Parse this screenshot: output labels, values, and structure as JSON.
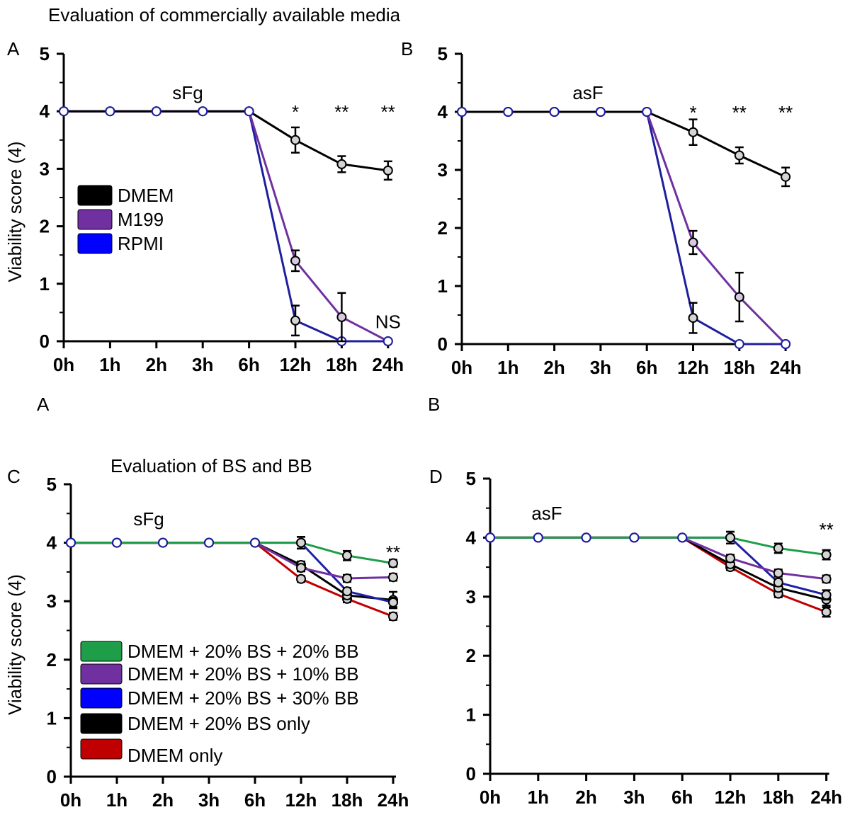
{
  "page_title": "Evaluation of commercially available media",
  "extra_labels": {
    "a_mid": "A",
    "b_mid": "B"
  },
  "colors": {
    "DMEM": "#000000",
    "M199": "#7030a0",
    "RPMI": "#1f1f9e",
    "green": "#1e9e48",
    "purple": "#7030a0",
    "blue": "#1f1fa8",
    "black": "#000000",
    "red": "#c00000"
  },
  "chart_data": [
    {
      "panel": "A",
      "type": "line",
      "subtitle": "sFg",
      "ylabel": "Viability score (4)",
      "xlabel": "",
      "categories": [
        "0h",
        "1h",
        "2h",
        "3h",
        "6h",
        "12h",
        "18h",
        "24h"
      ],
      "ylim": [
        0,
        5
      ],
      "yticks": [
        0,
        1,
        2,
        3,
        4,
        5
      ],
      "legend_position": "middle-left",
      "series": [
        {
          "name": "DMEM",
          "label": "DMEM",
          "color": "#000000",
          "values": [
            4,
            4,
            4,
            4,
            4,
            3.5,
            3.08,
            2.97
          ],
          "errors": [
            0,
            0,
            0,
            0,
            0,
            0.22,
            0.14,
            0.16
          ]
        },
        {
          "name": "M199",
          "label": "M199",
          "color": "#7030a0",
          "values": [
            4,
            4,
            4,
            4,
            4,
            1.4,
            0.42,
            0
          ],
          "errors": [
            0,
            0,
            0,
            0,
            0,
            0.18,
            0.42,
            0
          ]
        },
        {
          "name": "RPMI",
          "label": "RPMI",
          "color": "#1f1f9e",
          "values": [
            4,
            4,
            4,
            4,
            4,
            0.36,
            0,
            0
          ],
          "errors": [
            0,
            0,
            0,
            0,
            0,
            0.26,
            0,
            0
          ]
        }
      ],
      "annotations": [
        {
          "text": "*",
          "x": "12h",
          "y": 4.0
        },
        {
          "text": "**",
          "x": "18h",
          "y": 4.0
        },
        {
          "text": "**",
          "x": "24h",
          "y": 4.0
        },
        {
          "text": "NS",
          "x": "24h",
          "y": 0.35
        }
      ]
    },
    {
      "panel": "B",
      "type": "line",
      "subtitle": "asF",
      "ylabel": "",
      "xlabel": "",
      "categories": [
        "0h",
        "1h",
        "2h",
        "3h",
        "6h",
        "12h",
        "18h",
        "24h"
      ],
      "ylim": [
        0,
        5
      ],
      "yticks": [
        0,
        1,
        2,
        3,
        4,
        5
      ],
      "series": [
        {
          "name": "DMEM",
          "color": "#000000",
          "values": [
            4,
            4,
            4,
            4,
            4,
            3.65,
            3.25,
            2.88
          ],
          "errors": [
            0,
            0,
            0,
            0,
            0,
            0.22,
            0.14,
            0.16
          ]
        },
        {
          "name": "M199",
          "color": "#7030a0",
          "values": [
            4,
            4,
            4,
            4,
            4,
            1.75,
            0.81,
            0
          ],
          "errors": [
            0,
            0,
            0,
            0,
            0,
            0.2,
            0.42,
            0
          ]
        },
        {
          "name": "RPMI",
          "color": "#1f1f9e",
          "values": [
            4,
            4,
            4,
            4,
            4,
            0.45,
            0,
            0
          ],
          "errors": [
            0,
            0,
            0,
            0,
            0,
            0.26,
            0,
            0
          ]
        }
      ],
      "annotations": [
        {
          "text": "*",
          "x": "12h",
          "y": 4.0
        },
        {
          "text": "**",
          "x": "18h",
          "y": 4.0
        },
        {
          "text": "**",
          "x": "24h",
          "y": 4.0
        }
      ]
    },
    {
      "panel": "C",
      "type": "line",
      "title": "Evaluation of BS and BB",
      "subtitle": "sFg",
      "ylabel": "Viability score (4)",
      "xlabel": "",
      "categories": [
        "0h",
        "1h",
        "2h",
        "3h",
        "6h",
        "12h",
        "18h",
        "24h"
      ],
      "ylim": [
        0,
        5
      ],
      "yticks": [
        0,
        1,
        2,
        3,
        4,
        5
      ],
      "legend_position": "bottom-left",
      "series": [
        {
          "name": "DMEM + 20% BS + 20% BB",
          "label": "DMEM + 20% BS + 20% BB",
          "color": "#1e9e48",
          "values": [
            4,
            4,
            4,
            4,
            4,
            4.0,
            3.78,
            3.65
          ],
          "errors": [
            0,
            0,
            0,
            0,
            0,
            0.1,
            0.08,
            0.06
          ]
        },
        {
          "name": "DMEM + 20% BS + 10% BB",
          "label": "DMEM + 20% BS + 10% BB",
          "color": "#7030a0",
          "values": [
            4,
            4,
            4,
            4,
            4,
            3.57,
            3.39,
            3.41
          ],
          "errors": [
            0,
            0,
            0,
            0,
            0,
            0.06,
            0.06,
            0.06
          ]
        },
        {
          "name": "DMEM + 20% BS + 30% BB",
          "label": "DMEM + 20% BS + 30% BB",
          "color": "#1f1fa8",
          "values": [
            4,
            4,
            4,
            4,
            4,
            4.0,
            3.17,
            2.98
          ],
          "errors": [
            0,
            0,
            0,
            0,
            0,
            0.1,
            0.06,
            0.08
          ]
        },
        {
          "name": "DMEM + 20% BS only",
          "label": "DMEM + 20% BS only",
          "color": "#000000",
          "values": [
            4,
            4,
            4,
            4,
            4,
            3.62,
            3.1,
            3.02
          ],
          "errors": [
            0,
            0,
            0,
            0,
            0,
            0.06,
            0.06,
            0.14
          ]
        },
        {
          "name": "DMEM only",
          "label": "DMEM only",
          "color": "#c00000",
          "values": [
            4,
            4,
            4,
            4,
            4,
            3.38,
            3.04,
            2.74
          ],
          "errors": [
            0,
            0,
            0,
            0,
            0,
            0.05,
            0.06,
            0.06
          ]
        }
      ],
      "annotations": [
        {
          "text": "**",
          "x": "24h",
          "y": 3.85
        }
      ]
    },
    {
      "panel": "D",
      "type": "line",
      "subtitle": "asF",
      "ylabel": "",
      "xlabel": "",
      "categories": [
        "0h",
        "1h",
        "2h",
        "3h",
        "6h",
        "12h",
        "18h",
        "24h"
      ],
      "ylim": [
        0,
        5
      ],
      "yticks": [
        0,
        1,
        2,
        3,
        4,
        5
      ],
      "series": [
        {
          "name": "DMEM + 20% BS + 20% BB",
          "color": "#1e9e48",
          "values": [
            4,
            4,
            4,
            4,
            4,
            4.0,
            3.82,
            3.71
          ],
          "errors": [
            0,
            0,
            0,
            0,
            0,
            0.1,
            0.08,
            0.08
          ]
        },
        {
          "name": "DMEM + 20% BS + 10% BB",
          "color": "#7030a0",
          "values": [
            4,
            4,
            4,
            4,
            4,
            3.65,
            3.4,
            3.3
          ],
          "errors": [
            0,
            0,
            0,
            0,
            0,
            0.06,
            0.06,
            0.06
          ]
        },
        {
          "name": "DMEM + 20% BS + 30% BB",
          "color": "#1f1fa8",
          "values": [
            4,
            4,
            4,
            4,
            4,
            4.0,
            3.24,
            3.03
          ],
          "errors": [
            0,
            0,
            0,
            0,
            0,
            0.1,
            0.06,
            0.08
          ]
        },
        {
          "name": "DMEM + 20% BS only",
          "color": "#000000",
          "values": [
            4,
            4,
            4,
            4,
            4,
            3.55,
            3.15,
            2.95
          ],
          "errors": [
            0,
            0,
            0,
            0,
            0,
            0.06,
            0.06,
            0.1
          ]
        },
        {
          "name": "DMEM only",
          "color": "#c00000",
          "values": [
            4,
            4,
            4,
            4,
            4,
            3.5,
            3.05,
            2.74
          ],
          "errors": [
            0,
            0,
            0,
            0,
            0,
            0.05,
            0.06,
            0.08
          ]
        }
      ],
      "annotations": [
        {
          "text": "**",
          "x": "24h",
          "y": 4.15
        }
      ]
    }
  ]
}
